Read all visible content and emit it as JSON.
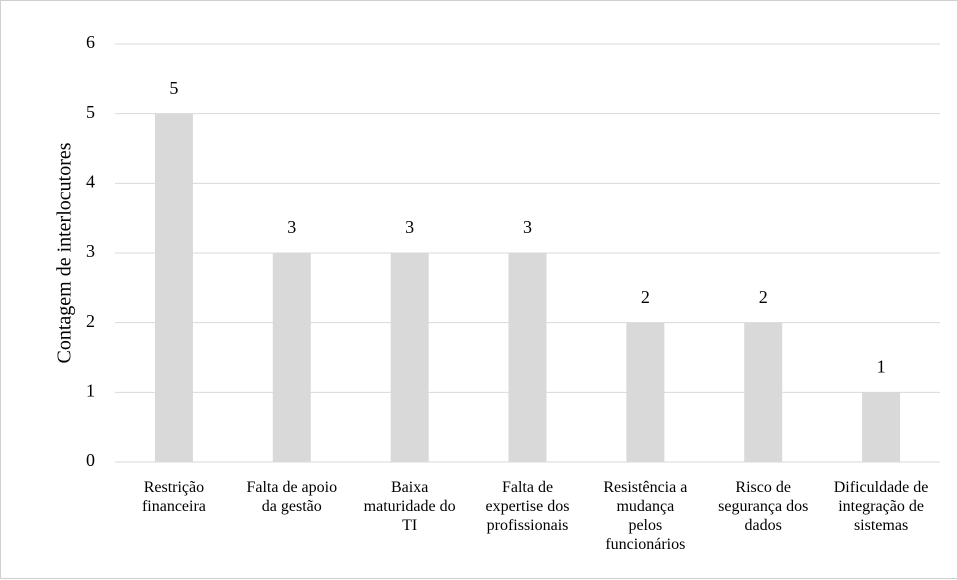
{
  "chart_data": {
    "type": "bar",
    "y_label": "Contagem de interlocutores",
    "categories": [
      "Restrição financeira",
      "Falta de apoio da gestão",
      "Baixa maturidade do TI",
      "Falta de expertise dos profissionais",
      "Resistência a mudança pelos funcionários",
      "Risco de segurança dos dados",
      "Dificuldade de integração de sistemas"
    ],
    "values": [
      5,
      3,
      3,
      3,
      2,
      2,
      1
    ],
    "color": "#d9d9d9",
    "ylim": [
      0,
      6
    ],
    "yticks": [
      0,
      1,
      2,
      3,
      4,
      5,
      6
    ],
    "grid": true
  }
}
